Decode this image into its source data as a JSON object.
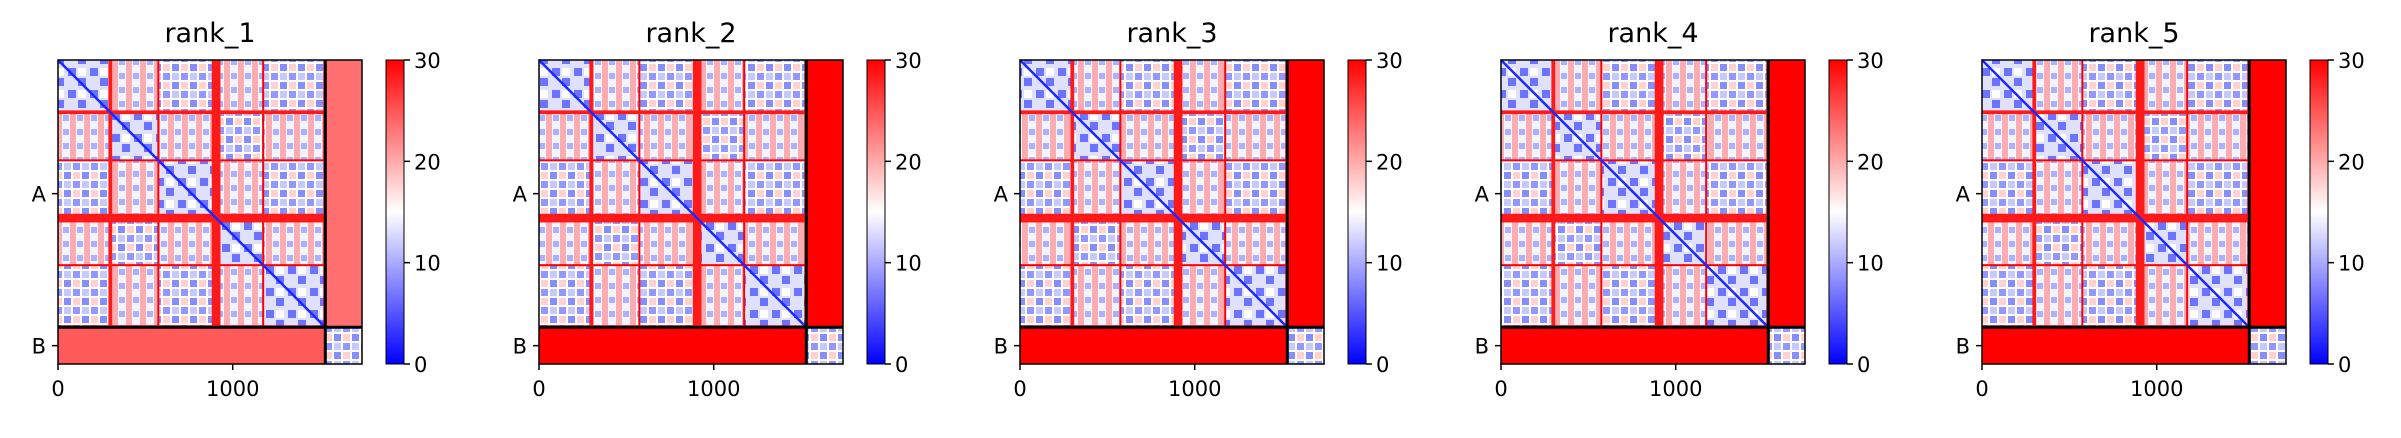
{
  "figure": {
    "panels": [
      {
        "title": "rank_1"
      },
      {
        "title": "rank_2"
      },
      {
        "title": "rank_3"
      },
      {
        "title": "rank_4"
      },
      {
        "title": "rank_5"
      }
    ]
  },
  "chart_data": {
    "type": "heatmap",
    "description_kind": "predicted aligned error matrices per model rank",
    "panels": [
      "rank_1",
      "rank_2",
      "rank_3",
      "rank_4",
      "rank_5"
    ],
    "chains": [
      {
        "label": "A",
        "start": 0,
        "end": 1530
      },
      {
        "label": "B",
        "start": 1530,
        "end": 1740
      }
    ],
    "total_length": 1740,
    "xticks": [
      0,
      1000
    ],
    "yticks": [
      "A",
      "B"
    ],
    "colorbar": {
      "min": 0,
      "max": 30,
      "ticks": [
        0,
        10,
        20,
        30
      ],
      "colormap": "bwr",
      "low_color": "#0000ff",
      "mid_color": "#ffffff",
      "high_color": "#ff0000"
    },
    "structure": {
      "chain_A_domains": [
        [
          0,
          300
        ],
        [
          300,
          580
        ],
        [
          580,
          920
        ],
        [
          920,
          1180
        ],
        [
          1180,
          1530
        ]
      ],
      "red_bands_in_A": [
        [
          290,
          310
        ],
        [
          880,
          930
        ]
      ],
      "chain_A_inter_chain_error": "high (~30) in ranks 2-5, mixed in rank 1",
      "chain_B_self": "low (~0-5)"
    }
  }
}
